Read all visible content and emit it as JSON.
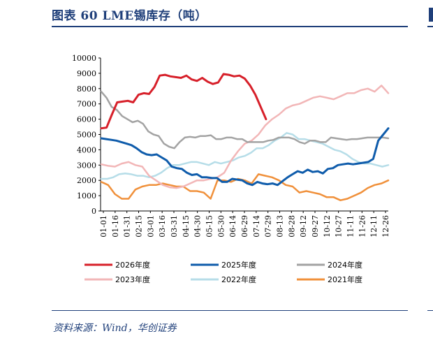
{
  "header": {
    "title": "图表 60   LME锡库存（吨）"
  },
  "footer": {
    "source": "资料来源：Wind，华创证券"
  },
  "colors": {
    "2026": "#d7202a",
    "2025": "#0f5cab",
    "2024": "#a3a3a3",
    "2023": "#f2b6b7",
    "2022": "#b6dde8",
    "2021": "#f0903a",
    "accent": "#1f3f7a"
  },
  "chart_data": {
    "type": "line",
    "ylim": [
      0,
      10000
    ],
    "yticks": [
      0,
      1000,
      2000,
      3000,
      4000,
      5000,
      6000,
      7000,
      8000,
      9000,
      10000
    ],
    "x_labels": [
      "01-01",
      "01-16",
      "01-31",
      "02-15",
      "03-01",
      "03-16",
      "03-31",
      "04-15",
      "04-30",
      "05-15",
      "05-30",
      "06-14",
      "06-29",
      "07-14",
      "07-29",
      "08-13",
      "08-28",
      "09-12",
      "09-27",
      "10-12",
      "10-27",
      "11-11",
      "11-26",
      "12-11",
      "12-26"
    ],
    "grid": false,
    "legend_position": "bottom",
    "series": [
      {
        "name": "2026年度",
        "key": "2026",
        "values": [
          5400,
          5450,
          6300,
          7100,
          7150,
          7200,
          7100,
          7600,
          7700,
          7650,
          8100,
          8850,
          8900,
          8800,
          8750,
          8700,
          8850,
          8600,
          8500,
          8700,
          8450,
          8300,
          8400,
          8950,
          8900,
          8800,
          8850,
          8650,
          8200,
          7600,
          6800,
          6000
        ]
      },
      {
        "name": "2025年度",
        "key": "2025",
        "values": [
          4750,
          4700,
          4650,
          4600,
          4500,
          4400,
          4300,
          4100,
          3850,
          3700,
          3650,
          3700,
          3500,
          3300,
          2900,
          2800,
          2750,
          2500,
          2350,
          2400,
          2200,
          2200,
          2150,
          2150,
          1900,
          1900,
          2100,
          2050,
          2000,
          1800,
          1700,
          1900,
          1800,
          1750,
          1800,
          1700,
          1950,
          2200,
          2400,
          2600,
          2500,
          2700,
          2550,
          2600,
          2450,
          2750,
          2800,
          3000,
          3050,
          3100,
          3050,
          3100,
          3150,
          3200,
          3400,
          4600,
          5000,
          5400
        ]
      },
      {
        "name": "2024年度",
        "key": "2024",
        "values": [
          7800,
          7400,
          6800,
          6600,
          6200,
          6000,
          5800,
          5900,
          5700,
          5200,
          5000,
          4900,
          4400,
          4200,
          4100,
          4500,
          4800,
          4850,
          4800,
          4900,
          4900,
          4950,
          4700,
          4700,
          4800,
          4800,
          4700,
          4700,
          4500,
          4500,
          4500,
          4500,
          4600,
          4650,
          4800,
          4800,
          4800,
          4700,
          4500,
          4400,
          4600,
          4600,
          4500,
          4500,
          4800,
          4750,
          4700,
          4650,
          4700,
          4700,
          4750,
          4800,
          4800,
          4800,
          4800,
          4750
        ]
      },
      {
        "name": "2023年度",
        "key": "2023",
        "values": [
          3050,
          2950,
          2900,
          3100,
          3200,
          3000,
          2900,
          2300,
          2000,
          1700,
          1550,
          1500,
          1600,
          1800,
          2000,
          2000,
          2100,
          2200,
          2500,
          3300,
          3900,
          4400,
          4600,
          5000,
          5600,
          6000,
          6300,
          6700,
          6900,
          7000,
          7200,
          7400,
          7500,
          7400,
          7300,
          7500,
          7700,
          7700,
          7900,
          8000,
          7800,
          8200,
          7700
        ]
      },
      {
        "name": "2022年度",
        "key": "2022",
        "values": [
          2100,
          2100,
          2200,
          2400,
          2450,
          2400,
          2300,
          2300,
          2200,
          2300,
          2500,
          2800,
          3000,
          3000,
          3100,
          3200,
          3200,
          3100,
          3000,
          3200,
          3100,
          3200,
          3300,
          3500,
          3600,
          3800,
          4100,
          4100,
          4300,
          4600,
          4800,
          5100,
          5000,
          4700,
          4700,
          4600,
          4500,
          4400,
          4200,
          4000,
          3900,
          3700,
          3400,
          3200,
          3100,
          3100,
          3000,
          2900,
          3000
        ]
      },
      {
        "name": "2021年度",
        "key": "2021",
        "values": [
          1900,
          1700,
          1100,
          800,
          800,
          1400,
          1600,
          1700,
          1700,
          1800,
          1700,
          1600,
          1600,
          1300,
          1300,
          1200,
          800,
          2000,
          2000,
          1900,
          2100,
          2000,
          1800,
          2400,
          2300,
          2200,
          2000,
          1700,
          1600,
          1200,
          1300,
          1200,
          1100,
          900,
          900,
          700,
          800,
          1000,
          1200,
          1500,
          1700,
          1800,
          2000
        ]
      }
    ]
  }
}
